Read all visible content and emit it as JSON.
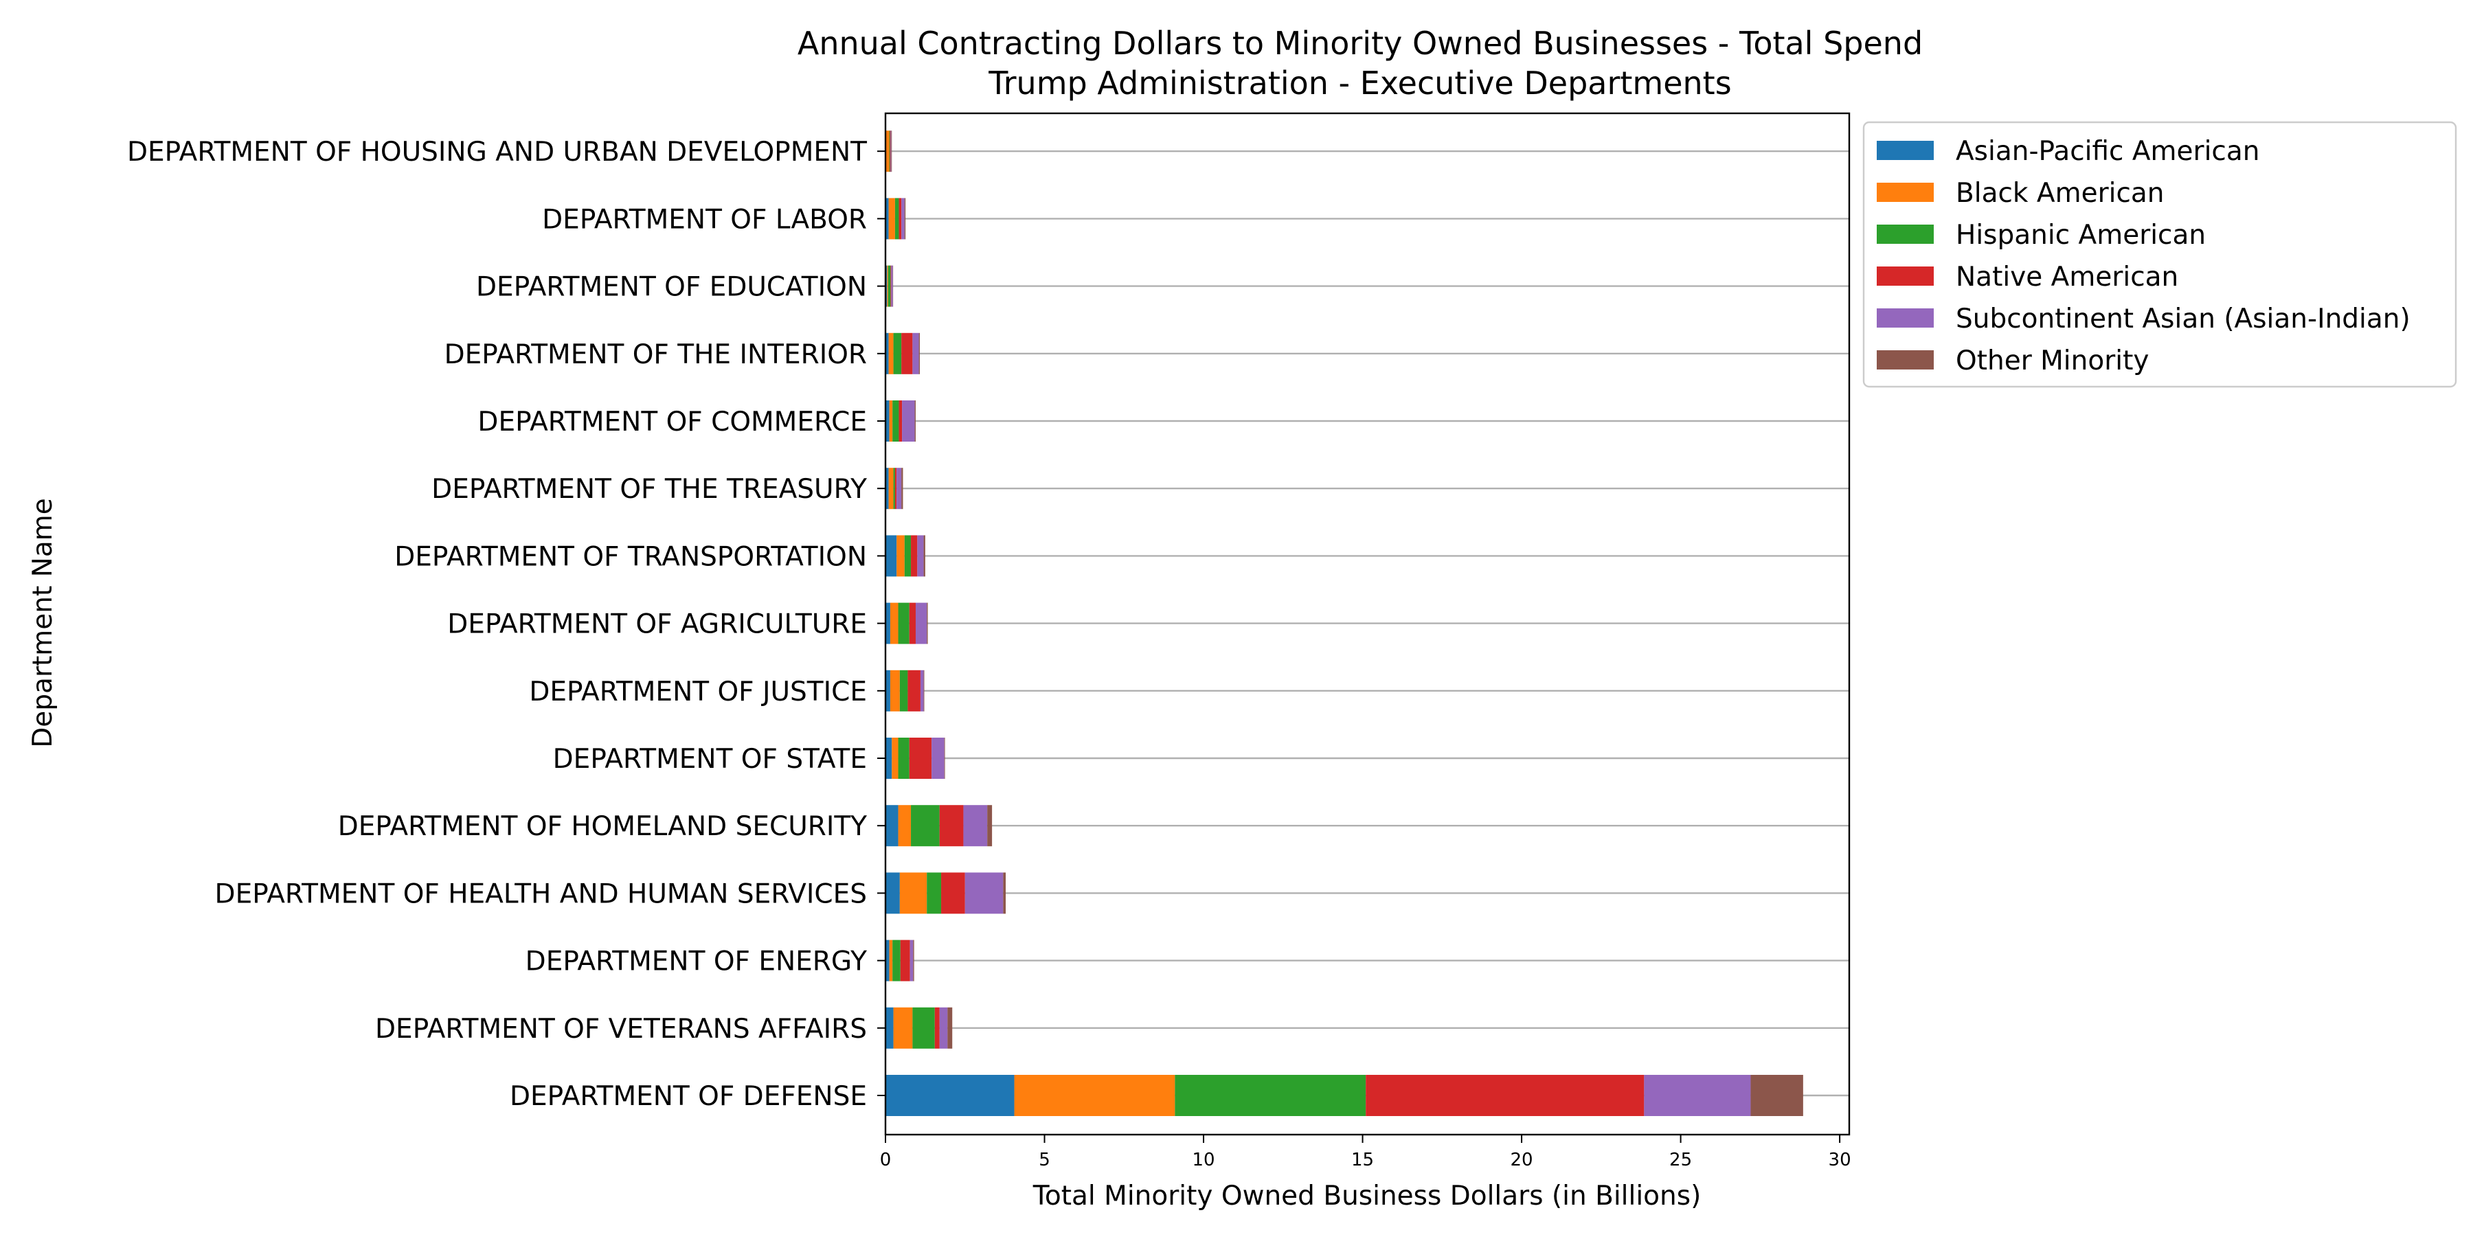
{
  "chart_data": {
    "type": "bar",
    "orientation": "horizontal",
    "stacked": true,
    "title": "Annual Contracting Dollars to Minority Owned Businesses - Total Spend",
    "subtitle": "Trump Administration - Executive Departments",
    "xlabel": "Total Minority Owned Business Dollars (in Billions)",
    "ylabel": "Department Name",
    "xlim": [
      0,
      30.3
    ],
    "xticks": [
      "0",
      "5",
      "10",
      "15",
      "20",
      "25",
      "30"
    ],
    "grid": "horizontal",
    "legend_position": "outside-right",
    "categories": [
      "DEPARTMENT OF DEFENSE",
      "DEPARTMENT OF VETERANS AFFAIRS",
      "DEPARTMENT OF ENERGY",
      "DEPARTMENT OF HEALTH AND HUMAN SERVICES",
      "DEPARTMENT OF HOMELAND SECURITY",
      "DEPARTMENT OF STATE",
      "DEPARTMENT OF JUSTICE",
      "DEPARTMENT OF AGRICULTURE ",
      "DEPARTMENT OF TRANSPORTATION",
      "DEPARTMENT OF THE TREASURY",
      "DEPARTMENT OF COMMERCE",
      "DEPARTMENT OF THE INTERIOR",
      "DEPARTMENT OF EDUCATION",
      "DEPARTMENT OF LABOR",
      "DEPARTMENT OF HOUSING AND URBAN DEVELOPMENT"
    ],
    "series": [
      {
        "name": "Asian-Pacific American",
        "color": "#1f77b4",
        "values": [
          4.05,
          0.25,
          0.12,
          0.45,
          0.4,
          0.2,
          0.15,
          0.15,
          0.35,
          0.1,
          0.12,
          0.1,
          0.05,
          0.1,
          0.02
        ]
      },
      {
        "name": "Black American",
        "color": "#ff7f0e",
        "values": [
          5.05,
          0.6,
          0.1,
          0.85,
          0.4,
          0.2,
          0.3,
          0.25,
          0.25,
          0.15,
          0.1,
          0.15,
          0.03,
          0.2,
          0.1
        ]
      },
      {
        "name": "Hispanic American",
        "color": "#2ca02c",
        "values": [
          6.0,
          0.7,
          0.25,
          0.45,
          0.9,
          0.35,
          0.25,
          0.35,
          0.2,
          0.05,
          0.2,
          0.25,
          0.08,
          0.12,
          0.02
        ]
      },
      {
        "name": "Native American",
        "color": "#d62728",
        "values": [
          8.75,
          0.15,
          0.3,
          0.75,
          0.75,
          0.7,
          0.4,
          0.2,
          0.2,
          0.05,
          0.1,
          0.35,
          0.02,
          0.08,
          0.02
        ]
      },
      {
        "name": "Subcontinent Asian (Asian-Indian)",
        "color": "#9467bd",
        "values": [
          3.35,
          0.25,
          0.1,
          1.2,
          0.75,
          0.4,
          0.1,
          0.35,
          0.2,
          0.15,
          0.4,
          0.2,
          0.05,
          0.1,
          0.02
        ]
      },
      {
        "name": "Other Minority",
        "color": "#8c564b",
        "values": [
          1.65,
          0.15,
          0.03,
          0.08,
          0.15,
          0.02,
          0.02,
          0.03,
          0.05,
          0.05,
          0.03,
          0.03,
          0.01,
          0.03,
          0.02
        ]
      }
    ]
  }
}
